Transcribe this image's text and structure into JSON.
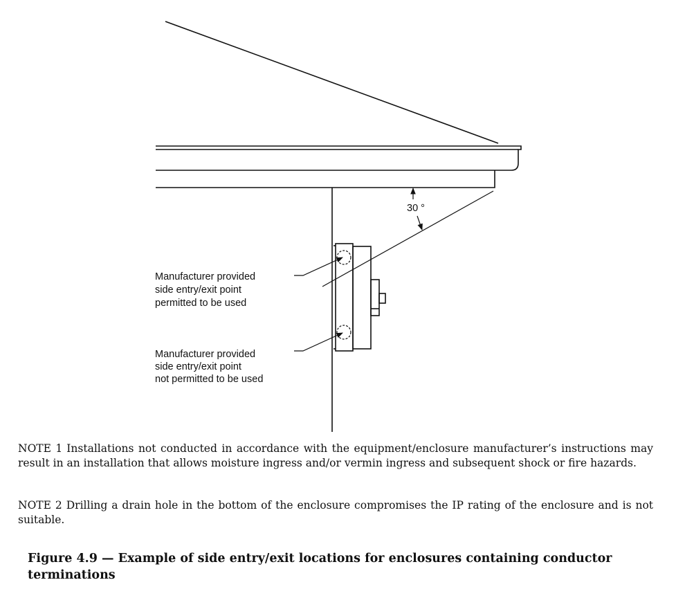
{
  "diagram": {
    "angle_label": "30 °",
    "label_permitted": [
      "Manufacturer provided",
      "side entry/exit point",
      "permitted to be used"
    ],
    "label_not_permitted": [
      "Manufacturer provided",
      "side entry/exit point",
      "not permitted to be used"
    ]
  },
  "notes": [
    {
      "tag": "NOTE 1",
      "text": "Installations not conducted in accordance with the equipment/enclosure manufacturer’s instructions may result in an installation that allows moisture ingress and/or vermin ingress and subsequent shock or fire hazards."
    },
    {
      "tag": "NOTE 2",
      "text": "Drilling a drain hole in the bottom of the enclosure compromises the IP rating of the enclosure and is not suitable."
    }
  ],
  "caption": "Figure 4.9 — Example of side entry/exit locations for enclosures containing conductor terminations"
}
